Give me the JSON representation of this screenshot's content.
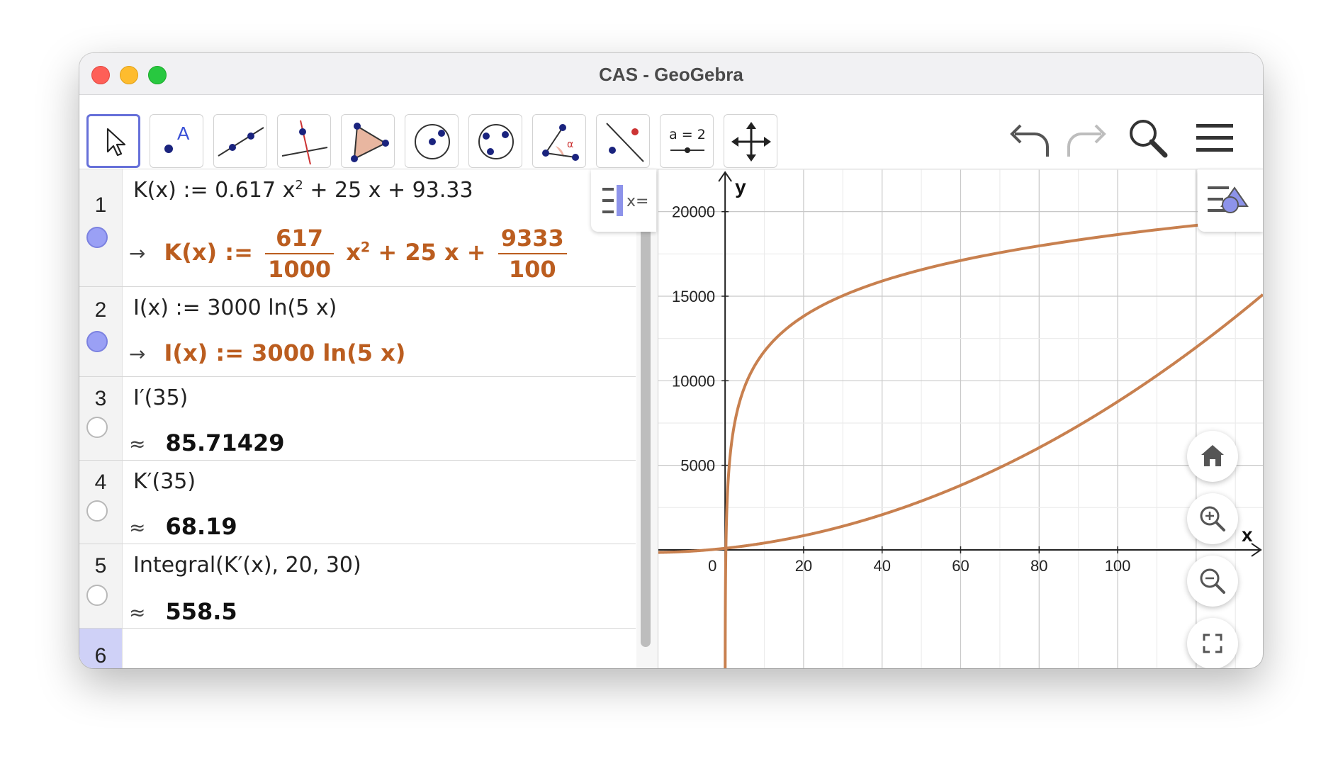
{
  "window": {
    "title": "CAS - GeoGebra"
  },
  "toolbar": {
    "tools": [
      {
        "name": "Move"
      },
      {
        "name": "Point",
        "label": "A"
      },
      {
        "name": "Line"
      },
      {
        "name": "Perpendicular Line"
      },
      {
        "name": "Polygon"
      },
      {
        "name": "Circle with Center"
      },
      {
        "name": "Circle through 3 Points"
      },
      {
        "name": "Angle",
        "label": "α"
      },
      {
        "name": "Reflect about Line"
      },
      {
        "name": "Slider",
        "label": "a = 2"
      },
      {
        "name": "Move Graphics View"
      }
    ]
  },
  "cas": {
    "rows": [
      {
        "num": "1",
        "input": {
          "a": "K(x) := 0.617 x",
          "sup": "2",
          "b": " + 25 x + 93.33"
        },
        "output": {
          "arrow": "→",
          "lhs": "K(x) := ",
          "f1n": "617",
          "f1d": "1000",
          "x": " x",
          "sup": "2",
          "mid": " + 25 x + ",
          "f2n": "9333",
          "f2d": "100"
        }
      },
      {
        "num": "2",
        "input": "I(x) := 3000  ln(5 x)",
        "output": {
          "arrow": "→",
          "text": "I(x) := 3000  ln(5 x)"
        }
      },
      {
        "num": "3",
        "input": "I′(35)",
        "output": {
          "approx": "≈",
          "text": "85.71429"
        }
      },
      {
        "num": "4",
        "input": "K′(35)",
        "output": {
          "approx": "≈",
          "text": "68.19"
        }
      },
      {
        "num": "5",
        "input": "Integral(K′(x), 20, 30)",
        "output": {
          "approx": "≈",
          "text": "558.5"
        }
      },
      {
        "num": "6",
        "input": ""
      }
    ]
  },
  "colors": {
    "accent": "#6670d9",
    "output": "#bb5d1f",
    "curve": "#c8804f",
    "marble_on": "#9aa0f5"
  },
  "chart_data": {
    "type": "line",
    "xlabel": "x",
    "ylabel": "y",
    "xlim": [
      -17,
      137
    ],
    "ylim": [
      -7000,
      22500
    ],
    "xticks": [
      0,
      20,
      40,
      60,
      80,
      100
    ],
    "xticklabels": [
      "0",
      "20",
      "40",
      "60",
      "80",
      "100"
    ],
    "yticks": [
      5000,
      10000,
      15000,
      20000
    ],
    "yticklabels": [
      "5000",
      "10000",
      "15000",
      "20000"
    ],
    "grid": true,
    "series": [
      {
        "name": "K",
        "expression": "0.617 x^2 + 25 x + 93.33",
        "color": "#c8804f"
      },
      {
        "name": "I",
        "expression": "3000 ln(5 x)",
        "color": "#c8804f"
      }
    ]
  }
}
